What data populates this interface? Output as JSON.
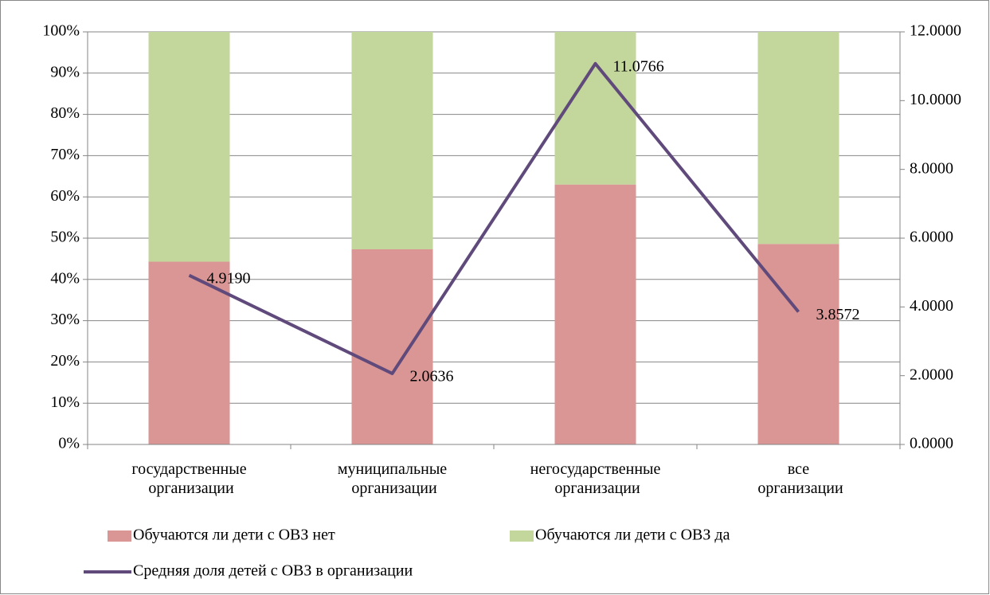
{
  "chart_data": {
    "type": "bar",
    "categories": [
      "государственные организации",
      "муниципальные организации",
      "негосударственные организации",
      "все организации"
    ],
    "stacked": true,
    "series": [
      {
        "name": "Обучаются ли дети с ОВЗ нет",
        "color": "#d99694",
        "values": [
          44.3,
          47.3,
          63,
          48.6
        ]
      },
      {
        "name": "Обучаются ли дети с ОВЗ да",
        "color": "#c3d69b",
        "values": [
          55.7,
          52.7,
          37,
          51.4
        ]
      },
      {
        "name": "Средняя доля детей с ОВЗ в организации",
        "type": "line",
        "axis": "y2",
        "color": "#604a7b",
        "values": [
          4.919,
          2.0636,
          11.0766,
          3.8572
        ],
        "value_labels": [
          "4.9190",
          "2.0636",
          "11.0766",
          "3.8572"
        ]
      }
    ],
    "ylim": [
      0,
      100
    ],
    "yticks": [
      {
        "value": 0,
        "label": "0%"
      },
      {
        "value": 10,
        "label": "10%"
      },
      {
        "value": 20,
        "label": "20%"
      },
      {
        "value": 30,
        "label": "30%"
      },
      {
        "value": 40,
        "label": "40%"
      },
      {
        "value": 50,
        "label": "50%"
      },
      {
        "value": 60,
        "label": "60%"
      },
      {
        "value": 70,
        "label": "70%"
      },
      {
        "value": 80,
        "label": "80%"
      },
      {
        "value": 90,
        "label": "90%"
      },
      {
        "value": 100,
        "label": "100%"
      }
    ],
    "y2lim": [
      0,
      12
    ],
    "y2ticks": [
      {
        "value": 0,
        "label": "0.0000"
      },
      {
        "value": 2,
        "label": "2.0000"
      },
      {
        "value": 4,
        "label": "4.0000"
      },
      {
        "value": 6,
        "label": "6.0000"
      },
      {
        "value": 8,
        "label": "8.0000"
      },
      {
        "value": 10,
        "label": "10.0000"
      },
      {
        "value": 12,
        "label": "12.0000"
      }
    ],
    "grid": true,
    "legend": "bottom"
  }
}
